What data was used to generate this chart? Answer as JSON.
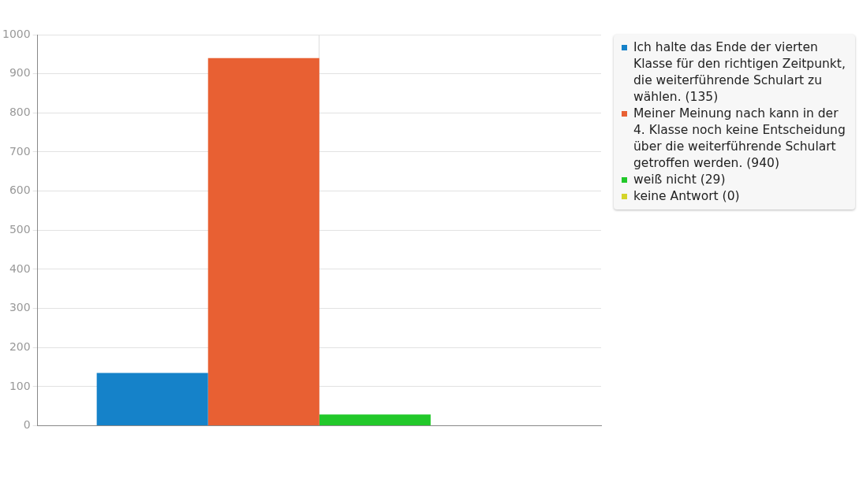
{
  "chart_data": {
    "type": "bar",
    "categories": [
      null
    ],
    "series": [
      {
        "name": "Ich halte das Ende der vierten Klasse für den richtigen Zeitpunkt, die weiterführende Schulart zu wählen. (135)",
        "color": "#1582c9",
        "values": [
          135
        ]
      },
      {
        "name": "Meiner Meinung nach kann in der 4. Klasse noch keine Entscheidung über die weiterführende Schulart getroffen werden. (940)",
        "color": "#e86033",
        "values": [
          940
        ]
      },
      {
        "name": "weiß nicht (29)",
        "color": "#22c82a",
        "values": [
          29
        ]
      },
      {
        "name": "keine Antwort (0)",
        "color": "#d4d42a",
        "values": [
          0
        ]
      }
    ],
    "ylim": [
      0,
      1000
    ],
    "yticks": [
      0,
      100,
      200,
      300,
      400,
      500,
      600,
      700,
      800,
      900,
      1000
    ],
    "grid": true,
    "legend": "right"
  }
}
